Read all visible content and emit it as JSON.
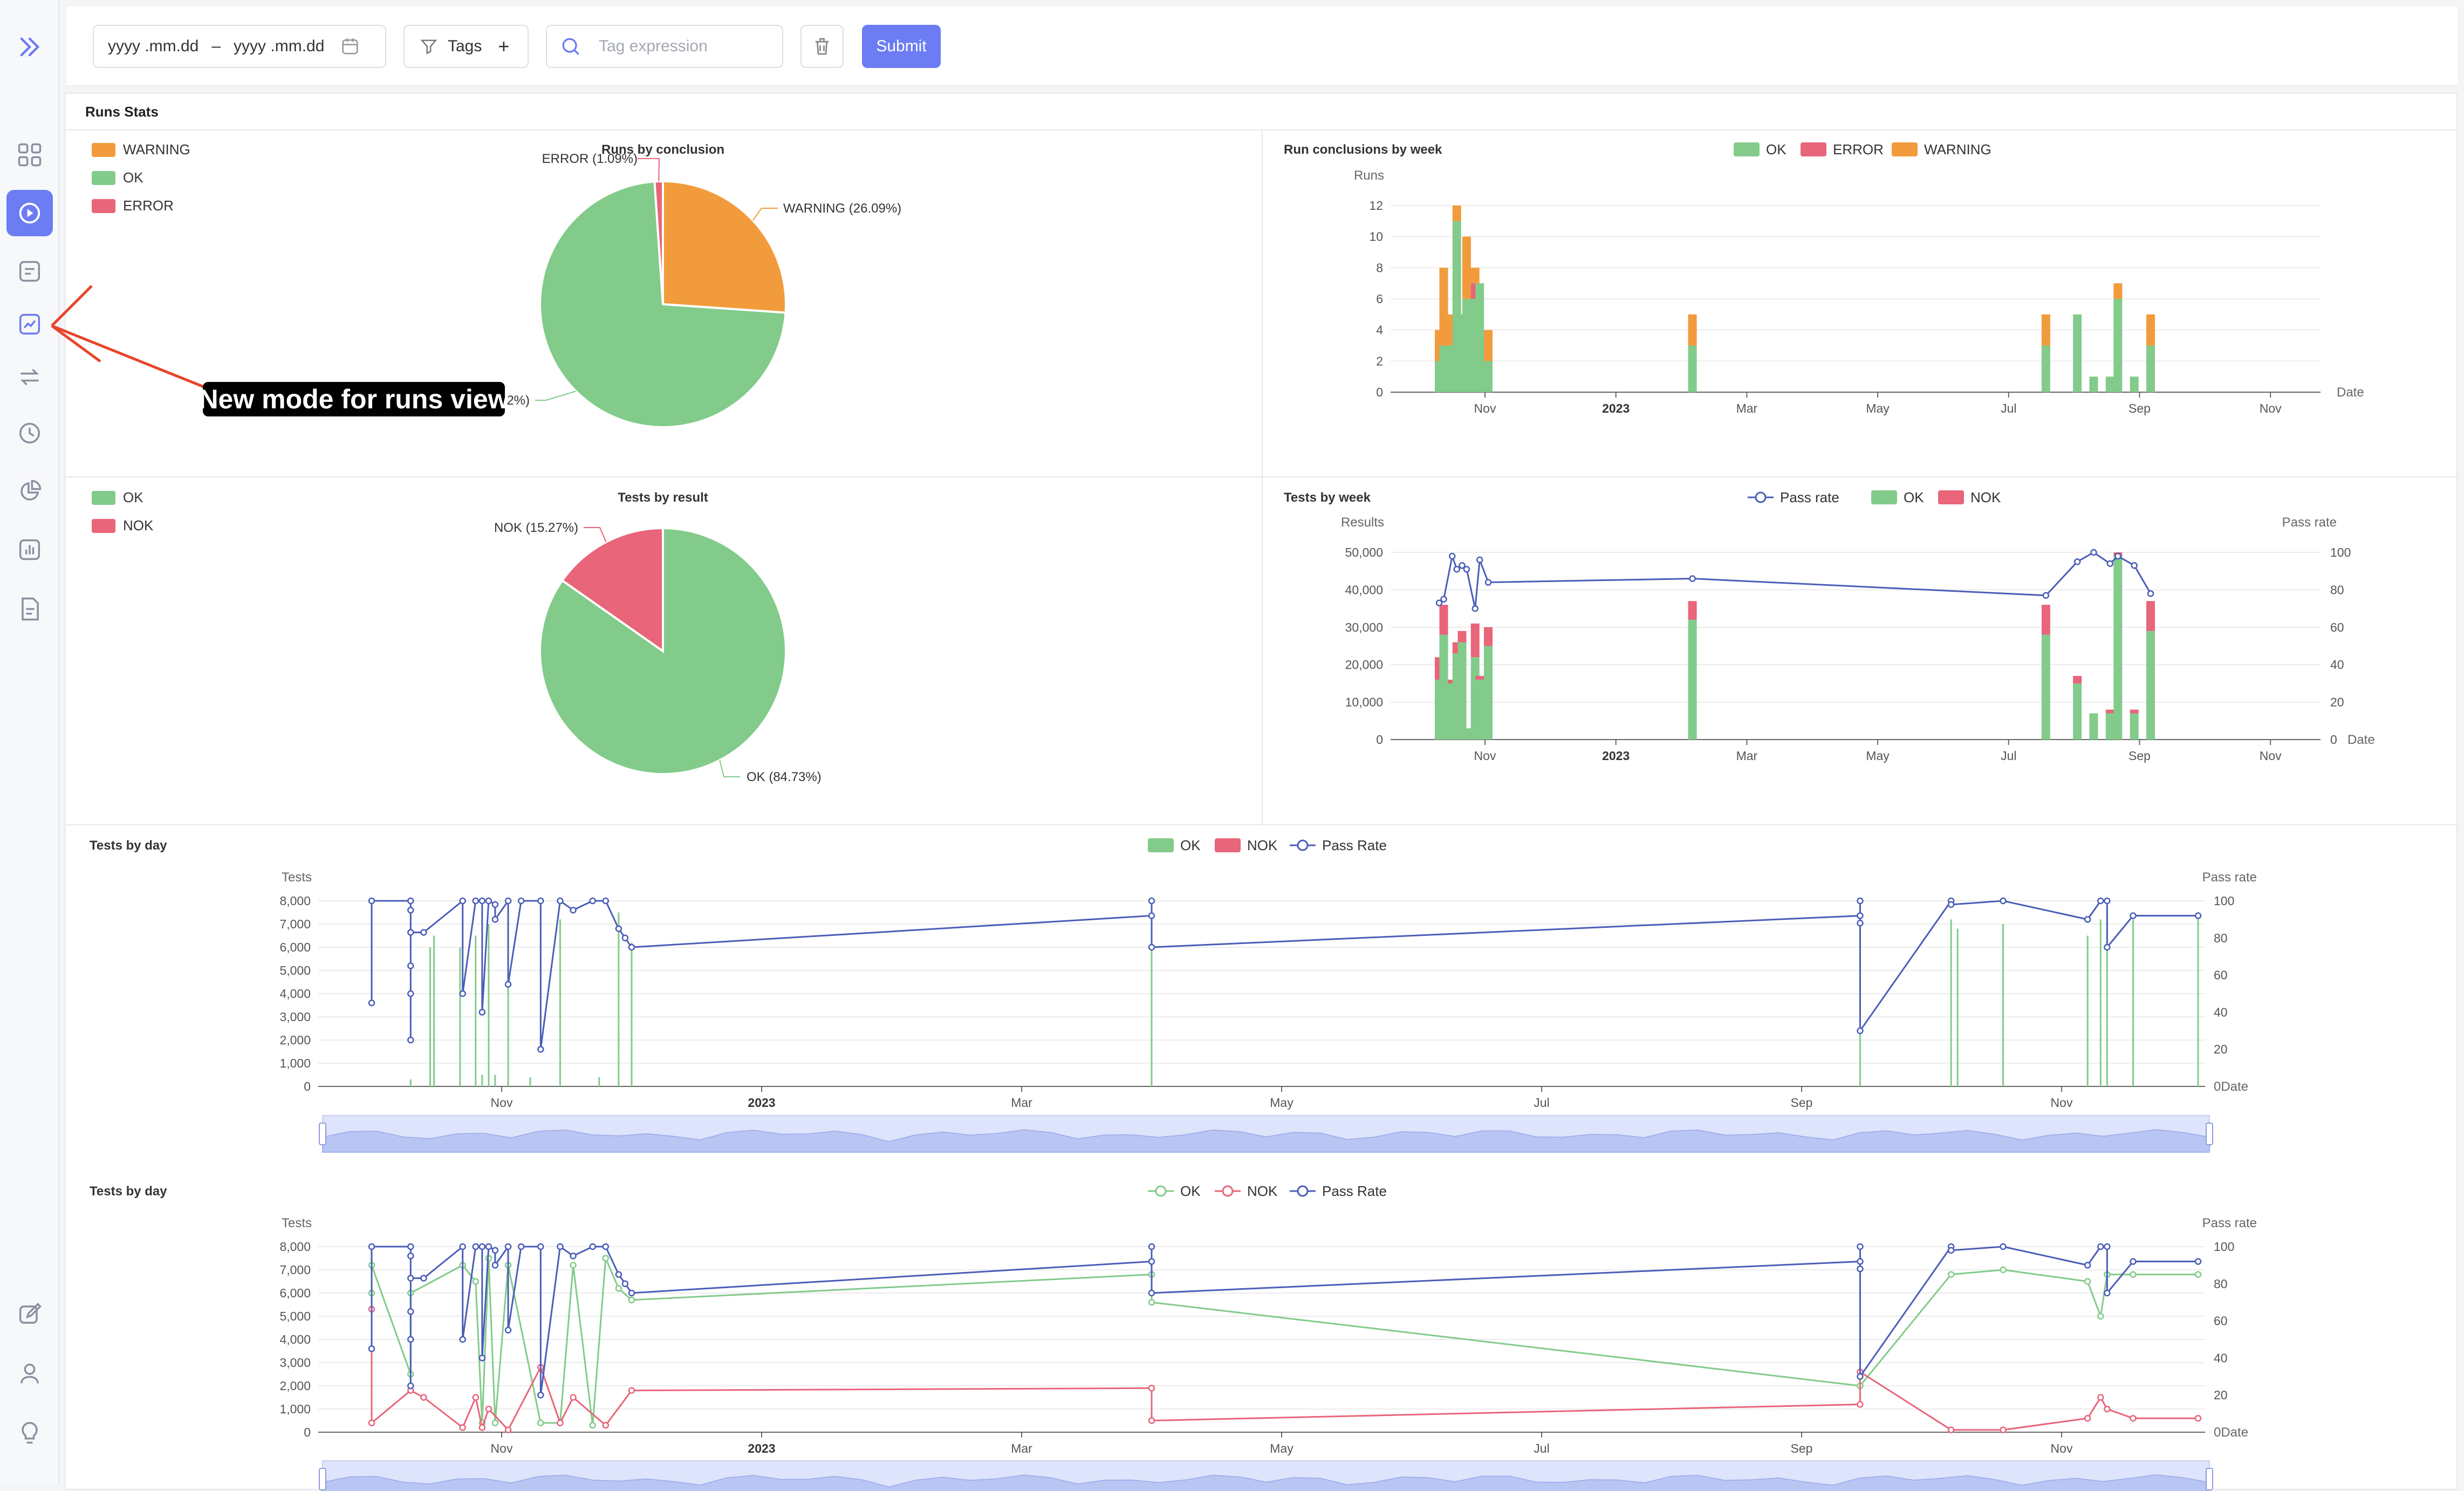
{
  "sidebar": {
    "items": [
      {
        "icon": "chevrons-right-icon"
      },
      {
        "icon": "dashboard-grid-icon"
      },
      {
        "icon": "play-circle-icon",
        "active": true
      },
      {
        "icon": "list-icon"
      },
      {
        "icon": "chart-mode-icon"
      },
      {
        "icon": "arrows-swap-icon"
      },
      {
        "icon": "history-clock-icon"
      },
      {
        "icon": "pie-chart-icon"
      },
      {
        "icon": "bar-chart-icon"
      },
      {
        "icon": "document-icon"
      },
      {
        "icon": "edit-icon"
      },
      {
        "icon": "user-icon"
      },
      {
        "icon": "lightbulb-icon"
      }
    ],
    "accent": "#6c7cf2"
  },
  "toolbar": {
    "date_from_placeholder": "yyyy .mm.dd",
    "date_sep": "–",
    "date_to_placeholder": "yyyy .mm.dd",
    "tags_label": "Tags",
    "tags_add": "+",
    "tag_expr_placeholder": "Tag expression",
    "submit_label": "Submit"
  },
  "panel": {
    "title": "Runs Stats"
  },
  "annotation": {
    "text": "New mode for runs view",
    "color": "#e8452a"
  },
  "colors": {
    "ok": "#82cb8a",
    "error": "#e8657a",
    "warning": "#f29b3c",
    "pass": "#4a5db8"
  },
  "chart_data": [
    {
      "id": "runs-by-conclusion",
      "type": "pie",
      "title": "Runs by conclusion",
      "legend": [
        "WARNING",
        "OK",
        "ERROR"
      ],
      "slices": [
        {
          "name": "WARNING",
          "value": 26.09,
          "label": "WARNING (26.09%)"
        },
        {
          "name": "OK",
          "value": 72.82,
          "label": "OK (72.82%)"
        },
        {
          "name": "ERROR",
          "value": 1.09,
          "label": "ERROR (1.09%)"
        }
      ]
    },
    {
      "id": "run-conclusions-by-week",
      "type": "bar",
      "title": "Run conclusions by week",
      "legend": [
        "OK",
        "ERROR",
        "WARNING"
      ],
      "ylabel": "Runs",
      "xlabel": "Date",
      "ylim": [
        0,
        12
      ],
      "yticks": [
        "0",
        "2",
        "4",
        "6",
        "8",
        "10",
        "12"
      ],
      "xticks": [
        "Nov",
        "2023",
        "Mar",
        "May",
        "Jul",
        "Sep",
        "Nov"
      ],
      "bars": [
        {
          "t": 0.0,
          "OK": 2,
          "ERROR": 0,
          "WARNING": 2
        },
        {
          "t": 0.07,
          "OK": 3,
          "ERROR": 0,
          "WARNING": 5
        },
        {
          "t": 0.2,
          "OK": 3,
          "ERROR": 0,
          "WARNING": 2
        },
        {
          "t": 0.27,
          "OK": 11,
          "ERROR": 0,
          "WARNING": 1
        },
        {
          "t": 0.35,
          "OK": 5,
          "ERROR": 0,
          "WARNING": 0
        },
        {
          "t": 0.42,
          "OK": 6,
          "ERROR": 0,
          "WARNING": 4
        },
        {
          "t": 0.55,
          "OK": 6,
          "ERROR": 1,
          "WARNING": 1
        },
        {
          "t": 0.62,
          "OK": 7,
          "ERROR": 0,
          "WARNING": 0
        },
        {
          "t": 0.75,
          "OK": 2,
          "ERROR": 0,
          "WARNING": 2
        },
        {
          "t": 3.87,
          "OK": 3,
          "ERROR": 0,
          "WARNING": 2
        },
        {
          "t": 9.27,
          "OK": 3,
          "ERROR": 0,
          "WARNING": 2
        },
        {
          "t": 9.75,
          "OK": 5,
          "ERROR": 0,
          "WARNING": 0
        },
        {
          "t": 10.0,
          "OK": 1,
          "ERROR": 0,
          "WARNING": 0
        },
        {
          "t": 10.25,
          "OK": 1,
          "ERROR": 0,
          "WARNING": 0
        },
        {
          "t": 10.37,
          "OK": 6,
          "ERROR": 0,
          "WARNING": 1
        },
        {
          "t": 10.62,
          "OK": 1,
          "ERROR": 0,
          "WARNING": 0
        },
        {
          "t": 10.87,
          "OK": 3,
          "ERROR": 0,
          "WARNING": 2
        }
      ]
    },
    {
      "id": "tests-by-result",
      "type": "pie",
      "title": "Tests by result",
      "legend": [
        "OK",
        "NOK"
      ],
      "slices": [
        {
          "name": "OK",
          "value": 84.73,
          "label": "OK (84.73%)"
        },
        {
          "name": "NOK",
          "value": 15.27,
          "label": "NOK (15.27%)"
        }
      ]
    },
    {
      "id": "tests-by-week",
      "type": "bar",
      "title": "Tests by week",
      "legend": [
        "Pass rate",
        "OK",
        "NOK"
      ],
      "ylabel": "Results",
      "y2label": "Pass rate",
      "xlabel": "Date",
      "ylim": [
        0,
        50000
      ],
      "y2lim": [
        0,
        100
      ],
      "yticks": [
        "0",
        "10,000",
        "20,000",
        "30,000",
        "40,000",
        "50,000"
      ],
      "y2ticks": [
        "0",
        "20",
        "40",
        "60",
        "80",
        "100"
      ],
      "xticks": [
        "Nov",
        "2023",
        "Mar",
        "May",
        "Jul",
        "Sep",
        "Nov"
      ],
      "bars": [
        {
          "t": 0.0,
          "OK": 16000,
          "NOK": 6000,
          "rate": 73
        },
        {
          "t": 0.07,
          "OK": 28000,
          "NOK": 8000,
          "rate": 75
        },
        {
          "t": 0.2,
          "OK": 15000,
          "NOK": 1000,
          "rate": 98
        },
        {
          "t": 0.27,
          "OK": 23000,
          "NOK": 3000,
          "rate": 91
        },
        {
          "t": 0.35,
          "OK": 26000,
          "NOK": 3000,
          "rate": 93
        },
        {
          "t": 0.42,
          "OK": 3000,
          "NOK": 0,
          "rate": 91
        },
        {
          "t": 0.55,
          "OK": 22000,
          "NOK": 9000,
          "rate": 70
        },
        {
          "t": 0.62,
          "OK": 16000,
          "NOK": 1000,
          "rate": 96
        },
        {
          "t": 0.75,
          "OK": 25000,
          "NOK": 5000,
          "rate": 84
        },
        {
          "t": 3.87,
          "OK": 32000,
          "NOK": 5000,
          "rate": 86
        },
        {
          "t": 9.27,
          "OK": 28000,
          "NOK": 8000,
          "rate": 77
        },
        {
          "t": 9.75,
          "OK": 15000,
          "NOK": 2000,
          "rate": 95
        },
        {
          "t": 10.0,
          "OK": 7000,
          "NOK": 0,
          "rate": 100
        },
        {
          "t": 10.25,
          "OK": 7000,
          "NOK": 1000,
          "rate": 94
        },
        {
          "t": 10.37,
          "OK": 49000,
          "NOK": 1000,
          "rate": 98
        },
        {
          "t": 10.62,
          "OK": 7000,
          "NOK": 1000,
          "rate": 93
        },
        {
          "t": 10.87,
          "OK": 29000,
          "NOK": 8000,
          "rate": 78
        }
      ]
    },
    {
      "id": "tests-by-day-bars",
      "type": "bar",
      "title": "Tests by day",
      "legend": [
        "OK",
        "NOK",
        "Pass Rate"
      ],
      "ylabel": "Tests",
      "y2label": "Pass rate",
      "xlabel": "Date",
      "ylim": [
        0,
        8000
      ],
      "y2lim": [
        0,
        100
      ],
      "yticks": [
        "0",
        "1,000",
        "2,000",
        "3,000",
        "4,000",
        "5,000",
        "6,000",
        "7,000",
        "8,000"
      ],
      "y2ticks": [
        "0",
        "20",
        "40",
        "60",
        "80",
        "100"
      ],
      "xticks": [
        "Nov",
        "2023",
        "Mar",
        "May",
        "Jul",
        "Sep",
        "Nov"
      ],
      "ok_bars": [
        {
          "t": -0.7,
          "v": 300
        },
        {
          "t": -0.55,
          "v": 6000
        },
        {
          "t": -0.52,
          "v": 6500
        },
        {
          "t": -0.32,
          "v": 6000
        },
        {
          "t": -0.2,
          "v": 6500
        },
        {
          "t": -0.15,
          "v": 500
        },
        {
          "t": -0.1,
          "v": 7000
        },
        {
          "t": -0.05,
          "v": 500
        },
        {
          "t": 0.05,
          "v": 7200
        },
        {
          "t": 0.22,
          "v": 400
        },
        {
          "t": 0.45,
          "v": 7200
        },
        {
          "t": 0.75,
          "v": 400
        },
        {
          "t": 0.9,
          "v": 7500
        },
        {
          "t": 1.0,
          "v": 6200
        },
        {
          "t": 5.0,
          "v": 7000
        },
        {
          "t": 10.45,
          "v": 7200
        },
        {
          "t": 11.15,
          "v": 7200
        },
        {
          "t": 11.2,
          "v": 6800
        },
        {
          "t": 11.55,
          "v": 7000
        },
        {
          "t": 12.2,
          "v": 6500
        },
        {
          "t": 12.3,
          "v": 7200
        },
        {
          "t": 12.35,
          "v": 7500
        },
        {
          "t": 12.55,
          "v": 7200
        },
        {
          "t": 13.05,
          "v": 7500
        }
      ],
      "rate_line": [
        [
          -1.0,
          45
        ],
        [
          -1.0,
          100
        ],
        [
          -0.7,
          100
        ],
        [
          -0.7,
          65
        ],
        [
          -0.7,
          50
        ],
        [
          -0.7,
          25
        ],
        [
          -0.7,
          95
        ],
        [
          -0.7,
          83
        ],
        [
          -0.6,
          83
        ],
        [
          -0.3,
          100
        ],
        [
          -0.3,
          50
        ],
        [
          -0.2,
          100
        ],
        [
          -0.15,
          100
        ],
        [
          -0.15,
          40
        ],
        [
          -0.1,
          100
        ],
        [
          -0.05,
          98
        ],
        [
          -0.05,
          90
        ],
        [
          0.05,
          100
        ],
        [
          0.05,
          55
        ],
        [
          0.15,
          100
        ],
        [
          0.3,
          100
        ],
        [
          0.3,
          20
        ],
        [
          0.45,
          100
        ],
        [
          0.55,
          95
        ],
        [
          0.7,
          100
        ],
        [
          0.8,
          100
        ],
        [
          0.9,
          85
        ],
        [
          0.95,
          80
        ],
        [
          1.0,
          75
        ],
        [
          5.0,
          92
        ],
        [
          5.0,
          100
        ],
        [
          5.0,
          75
        ],
        [
          10.45,
          92
        ],
        [
          10.45,
          100
        ],
        [
          10.45,
          88
        ],
        [
          10.45,
          30
        ],
        [
          11.15,
          100
        ],
        [
          11.15,
          98
        ],
        [
          11.55,
          100
        ],
        [
          12.2,
          90
        ],
        [
          12.3,
          100
        ],
        [
          12.35,
          100
        ],
        [
          12.35,
          75
        ],
        [
          12.55,
          92
        ],
        [
          13.05,
          92
        ]
      ]
    },
    {
      "id": "tests-by-day-lines",
      "type": "line",
      "title": "Tests by day",
      "legend": [
        "OK",
        "NOK",
        "Pass Rate"
      ],
      "ylabel": "Tests",
      "y2label": "Pass rate",
      "xlabel": "Date",
      "ylim": [
        0,
        8000
      ],
      "y2lim": [
        0,
        100
      ],
      "yticks": [
        "0",
        "1,000",
        "2,000",
        "3,000",
        "4,000",
        "5,000",
        "6,000",
        "7,000",
        "8,000"
      ],
      "y2ticks": [
        "0",
        "20",
        "40",
        "60",
        "80",
        "100"
      ],
      "xticks": [
        "Nov",
        "2023",
        "Mar",
        "May",
        "Jul",
        "Sep",
        "Nov"
      ],
      "ok_line": [
        [
          -1.0,
          6000
        ],
        [
          -1.0,
          7200
        ],
        [
          -0.7,
          2500
        ],
        [
          -0.7,
          6000
        ],
        [
          -0.3,
          7200
        ],
        [
          -0.2,
          6500
        ],
        [
          -0.15,
          400
        ],
        [
          -0.1,
          7500
        ],
        [
          -0.05,
          400
        ],
        [
          0.05,
          7200
        ],
        [
          0.3,
          400
        ],
        [
          0.45,
          400
        ],
        [
          0.55,
          7200
        ],
        [
          0.7,
          300
        ],
        [
          0.8,
          7500
        ],
        [
          0.9,
          6200
        ],
        [
          1.0,
          5700
        ],
        [
          5.0,
          6800
        ],
        [
          5.0,
          5600
        ],
        [
          10.45,
          2000
        ],
        [
          11.15,
          6800
        ],
        [
          11.55,
          7000
        ],
        [
          12.2,
          6500
        ],
        [
          12.3,
          5000
        ],
        [
          12.35,
          6800
        ],
        [
          12.55,
          6800
        ],
        [
          13.05,
          6800
        ]
      ],
      "nok_line": [
        [
          -1.0,
          5300
        ],
        [
          -1.0,
          400
        ],
        [
          -0.7,
          1800
        ],
        [
          -0.6,
          1500
        ],
        [
          -0.3,
          200
        ],
        [
          -0.2,
          1500
        ],
        [
          -0.15,
          200
        ],
        [
          -0.1,
          1000
        ],
        [
          0.05,
          100
        ],
        [
          0.3,
          2800
        ],
        [
          0.45,
          400
        ],
        [
          0.55,
          1500
        ],
        [
          0.8,
          300
        ],
        [
          1.0,
          1800
        ],
        [
          5.0,
          1900
        ],
        [
          5.0,
          500
        ],
        [
          10.45,
          1200
        ],
        [
          10.45,
          2600
        ],
        [
          11.15,
          100
        ],
        [
          11.55,
          100
        ],
        [
          12.2,
          600
        ],
        [
          12.3,
          1500
        ],
        [
          12.35,
          1000
        ],
        [
          12.55,
          600
        ],
        [
          13.05,
          600
        ]
      ],
      "rate_line": [
        [
          -1.0,
          45
        ],
        [
          -1.0,
          100
        ],
        [
          -0.7,
          100
        ],
        [
          -0.7,
          65
        ],
        [
          -0.7,
          50
        ],
        [
          -0.7,
          25
        ],
        [
          -0.7,
          95
        ],
        [
          -0.7,
          83
        ],
        [
          -0.6,
          83
        ],
        [
          -0.3,
          100
        ],
        [
          -0.3,
          50
        ],
        [
          -0.2,
          100
        ],
        [
          -0.15,
          100
        ],
        [
          -0.15,
          40
        ],
        [
          -0.1,
          100
        ],
        [
          -0.05,
          98
        ],
        [
          -0.05,
          90
        ],
        [
          0.05,
          100
        ],
        [
          0.05,
          55
        ],
        [
          0.15,
          100
        ],
        [
          0.3,
          100
        ],
        [
          0.3,
          20
        ],
        [
          0.45,
          100
        ],
        [
          0.55,
          95
        ],
        [
          0.7,
          100
        ],
        [
          0.8,
          100
        ],
        [
          0.9,
          85
        ],
        [
          0.95,
          80
        ],
        [
          1.0,
          75
        ],
        [
          5.0,
          92
        ],
        [
          5.0,
          100
        ],
        [
          5.0,
          75
        ],
        [
          10.45,
          92
        ],
        [
          10.45,
          100
        ],
        [
          10.45,
          88
        ],
        [
          10.45,
          30
        ],
        [
          11.15,
          100
        ],
        [
          11.15,
          98
        ],
        [
          11.55,
          100
        ],
        [
          12.2,
          90
        ],
        [
          12.3,
          100
        ],
        [
          12.35,
          100
        ],
        [
          12.35,
          75
        ],
        [
          12.55,
          92
        ],
        [
          13.05,
          92
        ]
      ]
    }
  ]
}
